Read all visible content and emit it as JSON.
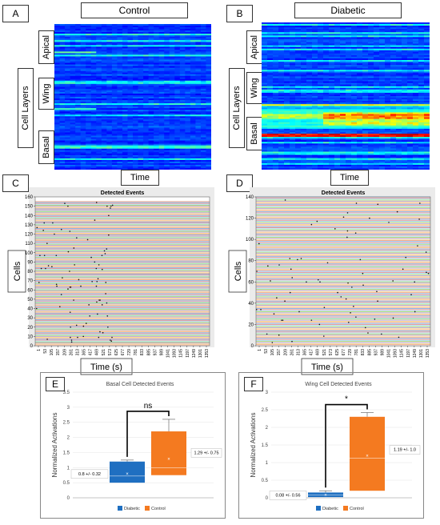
{
  "panels": {
    "A": {
      "letter": "A",
      "title": "Control",
      "xlabel": "Time",
      "ylabel": "Cell Layers",
      "layers": [
        "Apical",
        "Wing",
        "Basal"
      ]
    },
    "B": {
      "letter": "B",
      "title": "Diabetic",
      "xlabel": "Time",
      "ylabel": "Cell Layers",
      "layers": [
        "Apical",
        "Wing",
        "Basal"
      ]
    },
    "C": {
      "letter": "C"
    },
    "D": {
      "letter": "D"
    },
    "E": {
      "letter": "E"
    },
    "F": {
      "letter": "F"
    }
  },
  "colors": {
    "heat_low": "#00007a",
    "heat_mid": "#0a2cf0",
    "heat_high": "#00ffff",
    "diabetic": "#1f6fc1",
    "control": "#f47a20"
  },
  "chart_data": [
    {
      "type": "heatmap",
      "panel": "A",
      "title": "Control",
      "xlabel": "Time",
      "ylabel": "Cell Layers",
      "row_groups": [
        "Apical",
        "Wing",
        "Basal"
      ],
      "colormap": "jet",
      "intensity": "low"
    },
    {
      "type": "heatmap",
      "panel": "B",
      "title": "Diabetic",
      "xlabel": "Time",
      "ylabel": "Cell Layers",
      "row_groups": [
        "Apical",
        "Wing",
        "Basal"
      ],
      "colormap": "jet",
      "intensity": "high"
    },
    {
      "type": "scatter",
      "panel": "C",
      "title": "Detected Events",
      "xlabel": "Time (s)",
      "ylabel": "Cells",
      "ylim": [
        0,
        160
      ],
      "yticks": [
        0,
        10,
        20,
        30,
        40,
        50,
        60,
        70,
        80,
        90,
        100,
        110,
        120,
        130,
        140,
        150,
        160
      ],
      "xlim": [
        1,
        1400
      ],
      "xticks": [
        "1",
        "53",
        "105",
        "157",
        "209",
        "261",
        "313",
        "365",
        "417",
        "469",
        "521",
        "573",
        "625",
        "677",
        "729",
        "781",
        "833",
        "885",
        "937",
        "989",
        "1041",
        "1093",
        "1145",
        "1197",
        "1249",
        "1301",
        "1353"
      ],
      "n_cells": 155
    },
    {
      "type": "scatter",
      "panel": "D",
      "title": "Detected Events",
      "xlabel": "Time (s)",
      "ylabel": "Cells",
      "ylim": [
        0,
        140
      ],
      "yticks": [
        0,
        20,
        40,
        60,
        80,
        100,
        120,
        140
      ],
      "xlim": [
        1,
        1400
      ],
      "xticks": [
        "1",
        "53",
        "105",
        "157",
        "209",
        "261",
        "313",
        "365",
        "417",
        "469",
        "521",
        "573",
        "625",
        "677",
        "729",
        "781",
        "833",
        "885",
        "937",
        "989",
        "1041",
        "1093",
        "1145",
        "1197",
        "1249",
        "1301",
        "1353"
      ],
      "n_cells": 140
    },
    {
      "type": "box",
      "panel": "E",
      "title": "Basal Cell Detected Events",
      "ylabel": "Normalized Activations",
      "ylim": [
        0,
        3.5
      ],
      "yticks": [
        "0",
        "0.5",
        "1",
        "1.5",
        "2",
        "2.5",
        "3",
        "3.5"
      ],
      "legend": [
        "Diabetic",
        "Control"
      ],
      "significance": "ns",
      "series": [
        {
          "name": "Diabetic",
          "whisker_low": 0.5,
          "q1": 0.5,
          "median": 0.72,
          "mean": 0.8,
          "q3": 1.2,
          "whisker_high": 1.25,
          "label": "0.8 +/- 0.32"
        },
        {
          "name": "Control",
          "whisker_low": 0.75,
          "q1": 0.75,
          "median": 1.0,
          "mean": 1.29,
          "q3": 2.2,
          "whisker_high": 2.6,
          "label": "1.29 +/- 0.75"
        }
      ]
    },
    {
      "type": "box",
      "panel": "F",
      "title": "Wing Cell Detected Events",
      "ylabel": "Normalized Activations",
      "ylim": [
        0,
        3
      ],
      "yticks": [
        "0",
        "0.5",
        "1",
        "1.5",
        "2",
        "2.5",
        "3"
      ],
      "legend": [
        "Diabetic",
        "Control"
      ],
      "significance": "*",
      "series": [
        {
          "name": "Diabetic",
          "whisker_low": 0.02,
          "q1": 0.02,
          "median": 0.08,
          "mean": 0.08,
          "q3": 0.15,
          "whisker_high": 0.2,
          "label": "0.08 +/- 0.56"
        },
        {
          "name": "Control",
          "whisker_low": 0.2,
          "q1": 0.2,
          "median": 1.13,
          "mean": 1.19,
          "q3": 2.3,
          "whisker_high": 2.42,
          "label": "1.19 +/- 1.0"
        }
      ]
    }
  ]
}
